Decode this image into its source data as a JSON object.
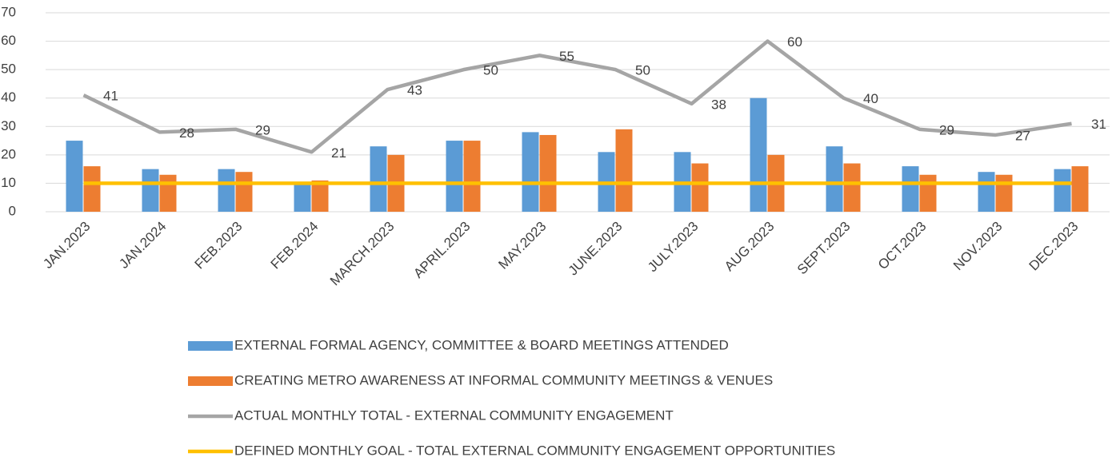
{
  "chart_data": {
    "type": "bar",
    "categories": [
      "JAN.2023",
      "JAN.2024",
      "FEB.2023",
      "FEB.2024",
      "MARCH.2023",
      "APRIL.2023",
      "MAY.2023",
      "JUNE.2023",
      "JULY.2023",
      "AUG.2023",
      "SEPT.2023",
      "OCT.2023",
      "NOV.2023",
      "DEC.2023"
    ],
    "series": [
      {
        "name": "EXTERNAL FORMAL AGENCY, COMMITTEE & BOARD MEETINGS ATTENDED",
        "type": "bar",
        "color": "#5b9bd5",
        "values": [
          25,
          15,
          15,
          10,
          23,
          25,
          28,
          21,
          21,
          40,
          23,
          16,
          14,
          15
        ]
      },
      {
        "name": "CREATING METRO AWARENESS AT INFORMAL COMMUNITY MEETINGS & VENUES",
        "type": "bar",
        "color": "#ed7d31",
        "values": [
          16,
          13,
          14,
          11,
          20,
          25,
          27,
          29,
          17,
          20,
          17,
          13,
          13,
          16
        ]
      },
      {
        "name": "ACTUAL MONTHLY TOTAL - EXTERNAL COMMUNITY ENGAGEMENT",
        "type": "line",
        "color": "#a5a5a5",
        "data_labels": true,
        "values": [
          41,
          28,
          29,
          21,
          43,
          50,
          55,
          50,
          38,
          60,
          40,
          29,
          27,
          31
        ]
      },
      {
        "name": "DEFINED MONTHLY GOAL - TOTAL EXTERNAL COMMUNITY ENGAGEMENT OPPORTUNITIES",
        "type": "line",
        "color": "#ffc000",
        "values": [
          10,
          10,
          10,
          10,
          10,
          10,
          10,
          10,
          10,
          10,
          10,
          10,
          10,
          10
        ]
      }
    ],
    "ylim": [
      0,
      70
    ],
    "yticks": [
      0,
      10,
      20,
      30,
      40,
      50,
      60,
      70
    ],
    "grid": true,
    "legend": "bottom"
  }
}
